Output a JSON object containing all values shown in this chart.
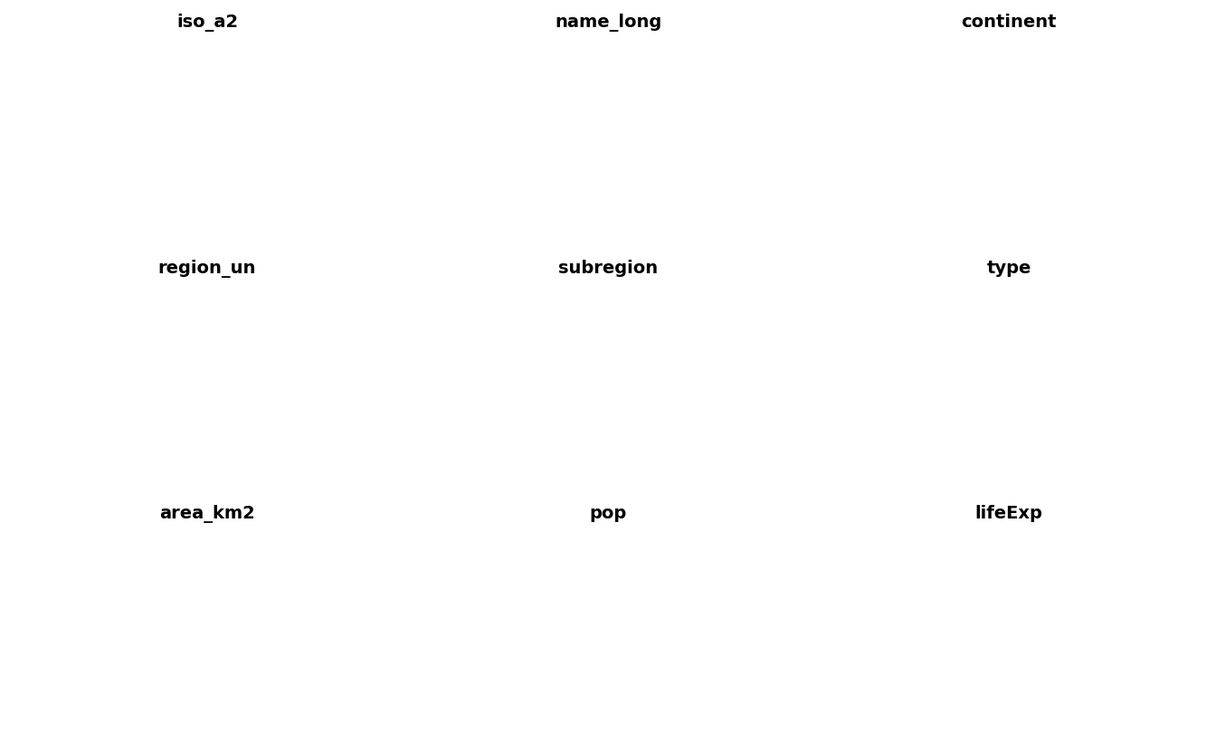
{
  "titles": [
    "iso_a2",
    "name_long",
    "continent",
    "region_un",
    "subregion",
    "type",
    "area_km2",
    "pop",
    "lifeExp"
  ],
  "layout": {
    "nrows": 3,
    "ncols": 3
  },
  "figsize": [
    13.44,
    8.3
  ],
  "background_color": "#ffffff",
  "title_fontsize": 14,
  "title_fontweight": "bold",
  "edge_color": "#1a1a1a",
  "edge_linewidth": 0.4,
  "xlim": [
    -180,
    180
  ],
  "ylim": [
    -90,
    90
  ],
  "continent_colors": {
    "Africa": "#66C2A5",
    "Antarctica": "#F4A460",
    "Asia": "#8DA0CB",
    "Europe": "#FC8D62",
    "North America": "#FFD92F",
    "Oceania": "#A6D854",
    "South America": "#E78AC3",
    "Seven seas (open ocean)": "#E5C494"
  },
  "region_un_colors": {
    "Africa": "#FC8D62",
    "Americas": "#66C2A5",
    "Asia": "#8DA0CB",
    "Europe": "#A6D854",
    "Oceania": "#FFD92F",
    "Antarctica": "#9999CC",
    "Oceania_2": "#E78AC3"
  },
  "subregion_colors": {
    "Northern America": "#FFD92F",
    "Central America": "#FC8D62",
    "Caribbean": "#66C2A5",
    "South America": "#CC99CC",
    "Northern Europe": "#8DA0CB",
    "Western Europe": "#E78AC3",
    "Eastern Europe": "#FFB347",
    "Southern Europe": "#66C2A5",
    "Northern Africa": "#FFD700",
    "Western Africa": "#FF8C94",
    "Middle Africa": "#A8D8A8",
    "Eastern Africa": "#FF6B6B",
    "Southern Africa": "#4ECDC4",
    "Central Asia": "#45B7D1",
    "Eastern Asia": "#96CEB4",
    "South-Eastern Asia": "#FF8C94",
    "Southern Asia": "#FFEAA7",
    "Western Asia": "#DDA0DD",
    "Australia and New Zealand": "#E8F4FD",
    "Melanesia": "#FFB347",
    "Micronesia": "#98D8C8",
    "Polynesia": "#F7DC6F",
    "Antarctica": "#F4A460"
  },
  "type_colors": {
    "Sovereign country": "#A8D8A8",
    "Country": "#96CEB4",
    "Dependency": "#45B7D1",
    "Disputed": "#FFB347",
    "Indeterminate": "#FF8C94",
    "Antarctica": "#FFB6C1"
  }
}
